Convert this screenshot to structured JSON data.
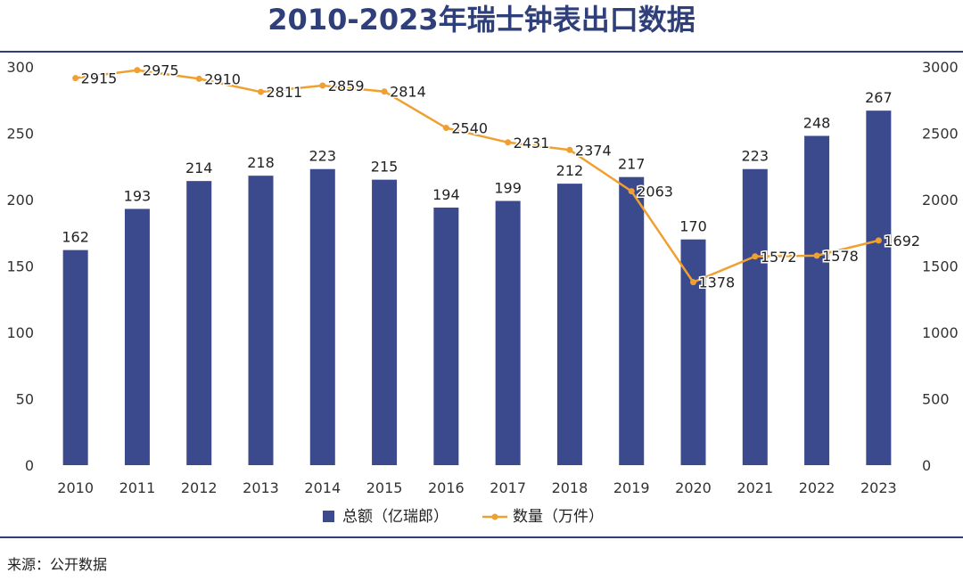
{
  "title": "2010-2023年瑞士钟表出口数据",
  "source": "来源：公开数据",
  "colors": {
    "bar": "#3b4a8c",
    "line": "#f0a030",
    "title": "#2f3f7a"
  },
  "chart_data": {
    "type": "bar",
    "title": "2010-2023年瑞士钟表出口数据",
    "categories": [
      "2010",
      "2011",
      "2012",
      "2013",
      "2014",
      "2015",
      "2016",
      "2017",
      "2018",
      "2019",
      "2020",
      "2021",
      "2022",
      "2023"
    ],
    "series": [
      {
        "name": "总额（亿瑞郎）",
        "type": "bar",
        "axis": "left",
        "values": [
          162,
          193,
          214,
          218,
          223,
          215,
          194,
          199,
          212,
          217,
          170,
          223,
          248,
          267
        ]
      },
      {
        "name": "数量（万件）",
        "type": "line",
        "axis": "right",
        "values": [
          2915,
          2975,
          2910,
          2811,
          2859,
          2814,
          2540,
          2431,
          2374,
          2063,
          1378,
          1572,
          1578,
          1692
        ]
      }
    ],
    "y_left": {
      "min": 0,
      "max": 300,
      "ticks": [
        "0",
        "50",
        "100",
        "150",
        "200",
        "250",
        "300"
      ]
    },
    "y_right": {
      "min": 0,
      "max": 3000,
      "ticks": [
        "0",
        "500",
        "1000",
        "1500",
        "2000",
        "2500",
        "3000"
      ]
    },
    "legend_position": "bottom"
  }
}
